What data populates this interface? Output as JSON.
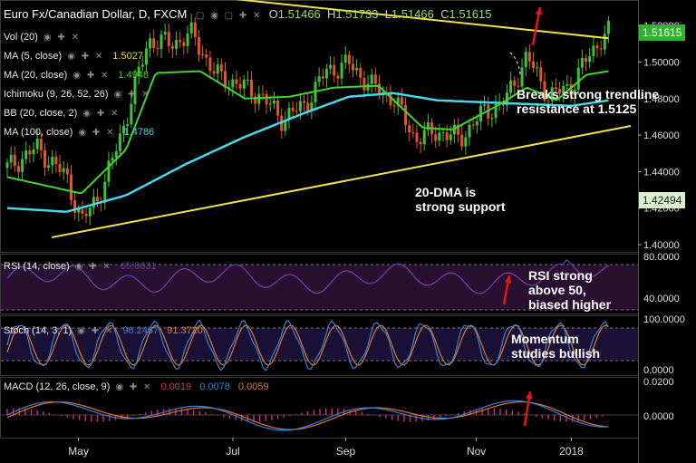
{
  "header": {
    "symbol": "Euro Fx/Canadian Dollar, D, FXCM",
    "open_label": "O",
    "open": "1.51466",
    "high_label": "H",
    "high": "1.51733",
    "low_label": "L",
    "low": "1.51466",
    "close_label": "C",
    "close": "1.51615"
  },
  "indicators": [
    {
      "label": "Vol (20)",
      "value": "",
      "color": ""
    },
    {
      "label": "MA (5, close)",
      "value": "1.5027",
      "color": "#e8d84a"
    },
    {
      "label": "MA (20, close)",
      "value": "1.4948",
      "color": "#3fd62e"
    },
    {
      "label": "Ichimoku (9, 26, 52, 26)",
      "value": "",
      "color": ""
    },
    {
      "label": "BB (20, close, 2)",
      "value": "",
      "color": ""
    },
    {
      "label": "MA (100, close)",
      "value": "1.4786",
      "color": "#48d6e8"
    }
  ],
  "rsi_panel": {
    "label": "RSI (14, close)",
    "value": "65.8631",
    "value_color": "#6a3fa0",
    "ticks": [
      "80.0000",
      "40.0000"
    ]
  },
  "stoch_panel": {
    "label": "Stoch (14, 3, 1)",
    "k": "96.2467",
    "d": "91.3720",
    "k_color": "#3a7fd6",
    "d_color": "#e07a2a",
    "ticks": [
      "100.0000",
      "0.0000"
    ]
  },
  "macd_panel": {
    "label": "MACD (12, 26, close, 9)",
    "hist": "0.0019",
    "macd": "0.0078",
    "signal": "0.0059",
    "ticks": [
      "0.0200",
      "0.0000"
    ]
  },
  "price_axis": {
    "ticks": [
      "1.52000",
      "1.50000",
      "1.48000",
      "1.46000",
      "1.44000",
      "1.42000",
      "1.40000"
    ],
    "current_price": "1.51615",
    "marker_price": "1.42494"
  },
  "time_axis": [
    "May",
    "Jul",
    "Sep",
    "Nov",
    "2018"
  ],
  "annotations": {
    "breakout": [
      "Breaks strong trendline",
      "resistance at 1.5125"
    ],
    "support": [
      "20-DMA is",
      "strong support"
    ],
    "rsi": [
      "RSI strong",
      "above 50,",
      "biased higher"
    ],
    "momentum": [
      "Momentum",
      "studies bullish"
    ]
  },
  "colors": {
    "up_candle": "#3fc23a",
    "down_candle": "#e0562a",
    "trendline": "#f0e24a",
    "ma5": "#e8d84a",
    "ma20": "#3fd62e",
    "ma100": "#48d6e8",
    "rsi_line": "#6a3fa0",
    "arrow": "#e01818"
  },
  "chart_data": {
    "type": "line",
    "title": "Euro Fx/Canadian Dollar, D, FXCM",
    "x": [
      "May",
      "Jul",
      "Sep",
      "Nov",
      "2018"
    ],
    "series": [
      {
        "name": "Price (approx. close)",
        "points": [
          [
            0,
            1.442
          ],
          [
            4,
            1.453
          ],
          [
            8,
            1.437
          ],
          [
            10,
            1.412
          ],
          [
            13,
            1.432
          ],
          [
            16,
            1.469
          ],
          [
            19,
            1.512
          ],
          [
            22,
            1.51
          ],
          [
            25,
            1.515
          ],
          [
            28,
            1.493
          ],
          [
            31,
            1.488
          ],
          [
            34,
            1.482
          ],
          [
            37,
            1.469
          ],
          [
            40,
            1.476
          ],
          [
            43,
            1.495
          ],
          [
            46,
            1.499
          ],
          [
            49,
            1.487
          ],
          [
            52,
            1.48
          ],
          [
            55,
            1.458
          ],
          [
            58,
            1.462
          ],
          [
            61,
            1.458
          ],
          [
            64,
            1.472
          ],
          [
            67,
            1.478
          ],
          [
            70,
            1.503
          ],
          [
            73,
            1.481
          ],
          [
            76,
            1.487
          ],
          [
            78,
            1.501
          ],
          [
            80,
            1.513
          ],
          [
            81,
            1.516
          ]
        ]
      },
      {
        "name": "MA (20, close)",
        "points": [
          [
            0,
            1.437
          ],
          [
            10,
            1.428
          ],
          [
            16,
            1.452
          ],
          [
            20,
            1.494
          ],
          [
            26,
            1.495
          ],
          [
            32,
            1.48
          ],
          [
            38,
            1.481
          ],
          [
            44,
            1.486
          ],
          [
            50,
            1.487
          ],
          [
            56,
            1.464
          ],
          [
            60,
            1.463
          ],
          [
            66,
            1.476
          ],
          [
            70,
            1.486
          ],
          [
            74,
            1.479
          ],
          [
            78,
            1.493
          ],
          [
            81,
            1.495
          ]
        ]
      },
      {
        "name": "MA (100, close)",
        "points": [
          [
            0,
            1.42
          ],
          [
            8,
            1.418
          ],
          [
            16,
            1.427
          ],
          [
            24,
            1.444
          ],
          [
            32,
            1.459
          ],
          [
            40,
            1.472
          ],
          [
            46,
            1.481
          ],
          [
            52,
            1.483
          ],
          [
            58,
            1.479
          ],
          [
            64,
            1.478
          ],
          [
            70,
            1.477
          ],
          [
            76,
            1.476
          ],
          [
            81,
            1.479
          ]
        ]
      }
    ],
    "trendlines": [
      {
        "from": [
          6,
          1.545
        ],
        "to": [
          81,
          1.513
        ]
      },
      {
        "from": [
          6,
          1.404
        ],
        "to": [
          84,
          1.465
        ]
      }
    ],
    "ylim": [
      1.4,
      1.53
    ],
    "ytick_labels": [
      "1.52000",
      "1.50000",
      "1.48000",
      "1.46000",
      "1.44000",
      "1.42000",
      "1.40000"
    ],
    "indicators": {
      "rsi_last": 65.8631,
      "stoch_k": 96.2467,
      "stoch_d": 91.372,
      "macd_hist": 0.0019,
      "macd": 0.0078,
      "macd_signal": 0.0059
    }
  }
}
